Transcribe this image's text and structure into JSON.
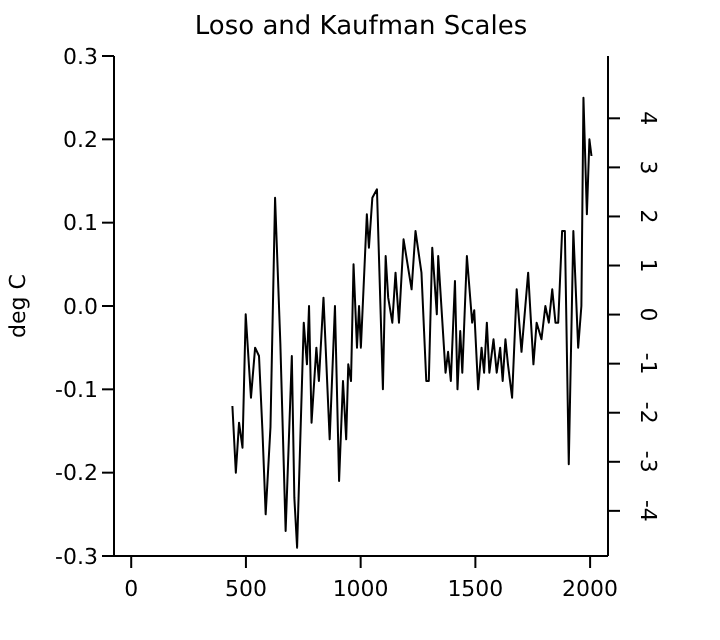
{
  "chart_data": {
    "type": "line",
    "title": "Loso and Kaufman Scales",
    "ylabel": "deg C",
    "x": [
      441,
      456,
      470,
      485,
      499,
      522,
      540,
      557,
      572,
      586,
      607,
      627,
      650,
      673,
      700,
      711,
      723,
      752,
      766,
      775,
      786,
      807,
      818,
      838,
      865,
      888,
      906,
      923,
      937,
      946,
      958,
      969,
      984,
      993,
      1001,
      1027,
      1036,
      1051,
      1071,
      1097,
      1109,
      1120,
      1138,
      1152,
      1167,
      1187,
      1222,
      1239,
      1265,
      1286,
      1297,
      1312,
      1332,
      1338,
      1370,
      1381,
      1393,
      1411,
      1422,
      1434,
      1443,
      1463,
      1486,
      1495,
      1512,
      1527,
      1538,
      1550,
      1561,
      1579,
      1593,
      1608,
      1619,
      1631,
      1642,
      1660,
      1680,
      1701,
      1730,
      1753,
      1767,
      1788,
      1805,
      1820,
      1835,
      1849,
      1861,
      1878,
      1890,
      1907,
      1927,
      1948,
      1962,
      1971,
      1986,
      1997,
      2006
    ],
    "values": [
      -0.12,
      -0.2,
      -0.14,
      -0.17,
      -0.01,
      -0.11,
      -0.05,
      -0.06,
      -0.15,
      -0.25,
      -0.145,
      0.13,
      -0.045,
      -0.27,
      -0.06,
      -0.23,
      -0.29,
      -0.02,
      -0.07,
      0.0,
      -0.14,
      -0.05,
      -0.09,
      0.01,
      -0.16,
      0.0,
      -0.21,
      -0.09,
      -0.16,
      -0.07,
      -0.09,
      0.05,
      -0.05,
      0.0,
      -0.05,
      0.11,
      0.07,
      0.13,
      0.14,
      -0.1,
      0.06,
      0.01,
      -0.02,
      0.04,
      -0.02,
      0.08,
      0.02,
      0.09,
      0.04,
      -0.09,
      -0.09,
      0.07,
      -0.01,
      0.06,
      -0.08,
      -0.055,
      -0.09,
      0.03,
      -0.1,
      -0.03,
      -0.08,
      0.06,
      -0.02,
      -0.005,
      -0.1,
      -0.05,
      -0.08,
      -0.02,
      -0.08,
      -0.04,
      -0.08,
      -0.05,
      -0.09,
      -0.04,
      -0.07,
      -0.11,
      0.02,
      -0.055,
      0.04,
      -0.07,
      -0.02,
      -0.04,
      0.0,
      -0.02,
      0.02,
      -0.02,
      -0.02,
      0.09,
      0.09,
      -0.19,
      0.09,
      -0.05,
      0.0,
      0.25,
      0.11,
      0.2,
      0.18
    ],
    "color": "#000000",
    "xlim": [
      -75,
      2078
    ],
    "xticks": [
      0,
      500,
      1000,
      1500,
      2000
    ],
    "ylim": [
      -0.3,
      0.3
    ],
    "yticks": [
      {
        "value": -0.3,
        "label": "-0.3"
      },
      {
        "value": -0.2,
        "label": "-0.2"
      },
      {
        "value": -0.1,
        "label": "-0.1"
      },
      {
        "value": 0,
        "label": "0.0"
      },
      {
        "value": 0.1,
        "label": "0.1"
      },
      {
        "value": 0.2,
        "label": "0.2"
      },
      {
        "value": 0.3,
        "label": "0.3"
      }
    ],
    "y2lim": [
      -4.92,
      5.27
    ],
    "y2ticks": [
      -4,
      -3,
      -2,
      -1,
      0,
      1,
      2,
      3,
      4
    ],
    "grid": false,
    "legend": false
  }
}
